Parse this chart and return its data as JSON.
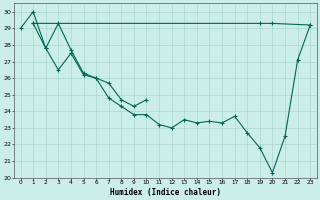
{
  "xlabel": "Humidex (Indice chaleur)",
  "xlim": [
    -0.5,
    23.5
  ],
  "ylim": [
    20,
    30.5
  ],
  "yticks": [
    20,
    21,
    22,
    23,
    24,
    25,
    26,
    27,
    28,
    29,
    30
  ],
  "xticks": [
    0,
    1,
    2,
    3,
    4,
    5,
    6,
    7,
    8,
    9,
    10,
    11,
    12,
    13,
    14,
    15,
    16,
    17,
    18,
    19,
    20,
    21,
    22,
    23
  ],
  "background_color": "#cceee8",
  "grid_color": "#aad8d0",
  "line_color": "#006655",
  "line1": [
    [
      0,
      29.0
    ],
    [
      1,
      30.0
    ],
    [
      2,
      27.8
    ],
    [
      3,
      29.3
    ],
    [
      4,
      27.7
    ],
    [
      5,
      26.3
    ],
    [
      6,
      26.0
    ],
    [
      7,
      24.8
    ],
    [
      8,
      24.3
    ],
    [
      9,
      23.8
    ],
    [
      10,
      23.8
    ],
    [
      11,
      23.2
    ],
    [
      12,
      23.0
    ],
    [
      13,
      23.5
    ],
    [
      14,
      23.3
    ],
    [
      15,
      23.4
    ],
    [
      16,
      23.3
    ],
    [
      17,
      23.7
    ],
    [
      18,
      22.7
    ],
    [
      19,
      21.8
    ],
    [
      20,
      20.3
    ],
    [
      21,
      22.5
    ],
    [
      22,
      27.1
    ],
    [
      23,
      29.2
    ]
  ],
  "line2": [
    [
      1,
      29.3
    ],
    [
      2,
      27.8
    ],
    [
      3,
      26.5
    ],
    [
      4,
      27.5
    ],
    [
      5,
      26.2
    ],
    [
      6,
      26.0
    ],
    [
      7,
      25.7
    ],
    [
      8,
      24.7
    ],
    [
      9,
      24.3
    ],
    [
      10,
      24.7
    ]
  ],
  "line3": [
    [
      1,
      29.3
    ],
    [
      19,
      29.3
    ],
    [
      20,
      29.3
    ],
    [
      23,
      29.2
    ]
  ],
  "figsize": [
    3.2,
    2.0
  ],
  "dpi": 100
}
